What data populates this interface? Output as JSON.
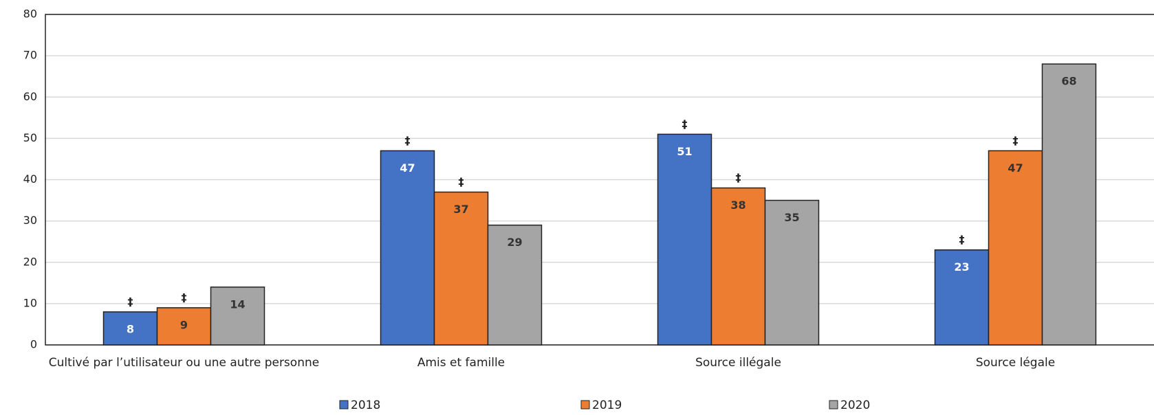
{
  "chart_data": {
    "type": "bar",
    "categories": [
      "Cultivé par l’utilisateur ou une autre personne",
      "Amis et famille",
      "Source illégale",
      "Source légale"
    ],
    "series": [
      {
        "name": "2018",
        "color": "#4472c4",
        "values": [
          8,
          47,
          51,
          23
        ],
        "markers": [
          "‡",
          "‡",
          "‡",
          "‡"
        ]
      },
      {
        "name": "2019",
        "color": "#ed7d31",
        "values": [
          9,
          37,
          38,
          47
        ],
        "markers": [
          "‡",
          "‡",
          "‡",
          "‡"
        ]
      },
      {
        "name": "2020",
        "color": "#a5a5a5",
        "values": [
          14,
          29,
          35,
          68
        ]
      }
    ],
    "ylim": [
      0,
      80
    ],
    "yticks": [
      0,
      10,
      20,
      30,
      40,
      50,
      60,
      70,
      80
    ],
    "grid": true,
    "legend": "bottom"
  }
}
